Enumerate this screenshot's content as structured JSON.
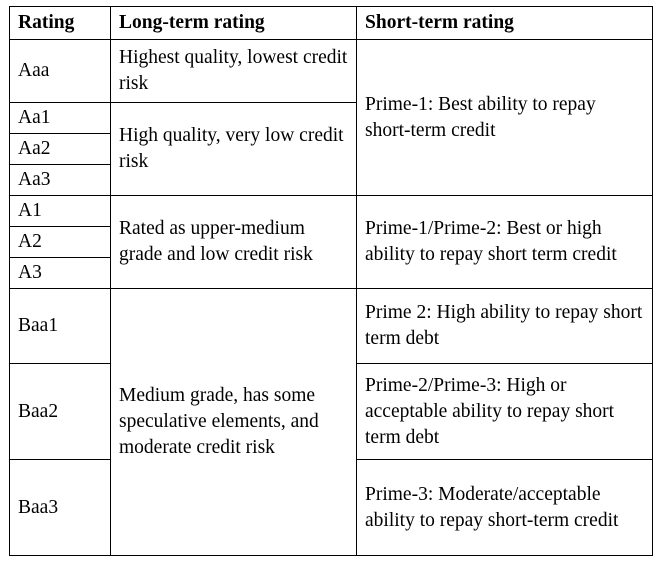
{
  "table": {
    "headers": {
      "rating": "Rating",
      "long_term": "Long-term rating",
      "short_term": "Short-term rating"
    },
    "ratings": [
      "Aaa",
      "Aa1",
      "Aa2",
      "Aa3",
      "A1",
      "A2",
      "A3",
      "Baa1",
      "Baa2",
      "Baa3"
    ],
    "long_term": [
      "Highest quality, lowest credit risk",
      "High quality, very low credit risk",
      "Rated as upper-medium grade and low credit risk",
      "Medium grade, has some speculative elements, and moderate credit risk"
    ],
    "short_term": [
      "Prime-1: Best ability to repay short-term credit",
      "Prime-1/Prime-2: Best or high ability to repay short term credit",
      "Prime 2: High ability to repay short term debt",
      "Prime-2/Prime-3: High or acceptable ability to repay short term debt",
      "Prime-3: Moderate/acceptable ability to repay short-term credit"
    ]
  }
}
